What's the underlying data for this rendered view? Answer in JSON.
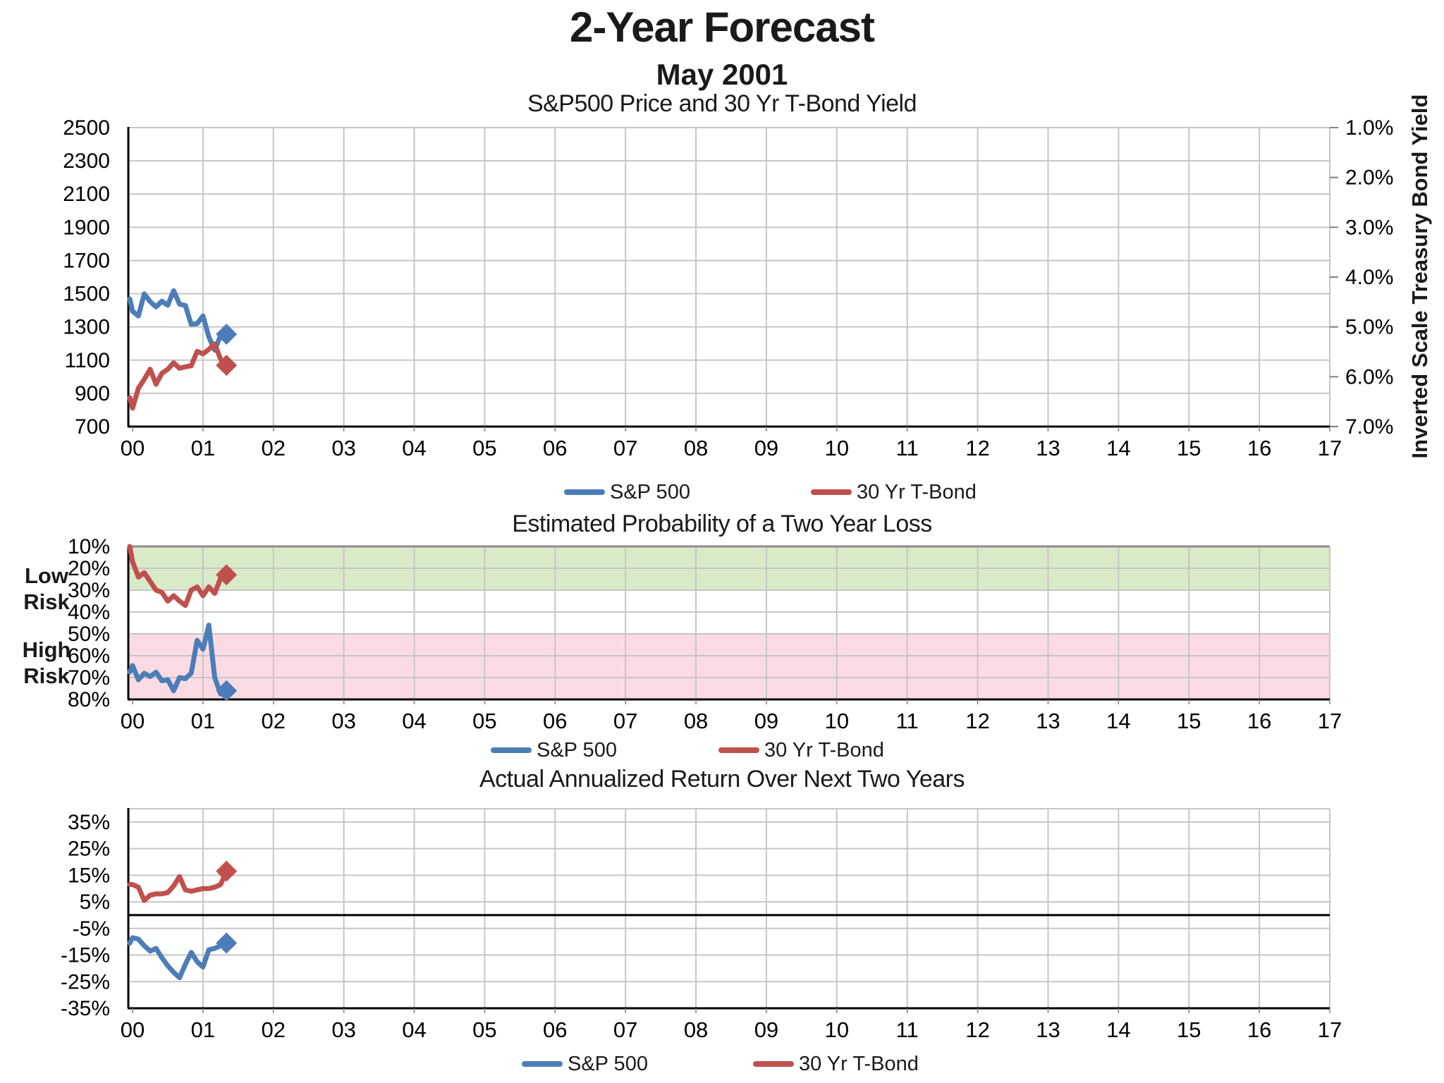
{
  "title": "2-Year Forecast",
  "subtitle": "May 2001",
  "legend": {
    "sp500": "S&P 500",
    "tbond": "30 Yr T-Bond"
  },
  "colors": {
    "sp500": "#4C7DB8",
    "tbond": "#C0504D",
    "grid": "#C6C6C6",
    "axis": "#000000",
    "green_band": "#D9EAC8",
    "pink_band": "#FBDBE3"
  },
  "chart_data": [
    {
      "type": "line",
      "title": "S&P500 Price and 30 Yr T-Bond Yield",
      "x_ticks": [
        "00",
        "01",
        "02",
        "03",
        "04",
        "05",
        "06",
        "07",
        "08",
        "09",
        "10",
        "11",
        "12",
        "13",
        "14",
        "15",
        "16",
        "17"
      ],
      "x_start": "1999-12",
      "x_interval": "monthly",
      "left_axis": {
        "min": 700,
        "max": 2500,
        "inverted": false,
        "tick_values": [
          2500,
          2300,
          2100,
          1900,
          1700,
          1500,
          1300,
          1100,
          900,
          700
        ],
        "ticks": [
          "2500",
          "2300",
          "2100",
          "1900",
          "1700",
          "1500",
          "1300",
          "1100",
          "900",
          "700"
        ]
      },
      "right_axis": {
        "label": "Inverted Scale Treasury Bond Yield",
        "min": 1.0,
        "max": 7.0,
        "inverted": true,
        "tick_values": [
          1,
          2,
          3,
          4,
          5,
          6,
          7
        ],
        "ticks": [
          "1.0%",
          "2.0%",
          "3.0%",
          "4.0%",
          "5.0%",
          "6.0%",
          "7.0%"
        ]
      },
      "series": [
        {
          "name": "S&P 500",
          "axis": "left",
          "marker_on_last": true,
          "values": [
            1469,
            1394,
            1366,
            1499,
            1452,
            1421,
            1455,
            1431,
            1518,
            1437,
            1429,
            1315,
            1320,
            1366,
            1240,
            1160,
            1249,
            1256
          ]
        },
        {
          "name": "30 Yr T-Bond",
          "axis": "right",
          "marker_on_last": true,
          "values": [
            6.42,
            6.63,
            6.23,
            6.05,
            5.85,
            6.15,
            5.93,
            5.85,
            5.72,
            5.83,
            5.8,
            5.78,
            5.49,
            5.54,
            5.45,
            5.34,
            5.65,
            5.77
          ]
        }
      ]
    },
    {
      "type": "line",
      "title": "Estimated Probability of a Two Year Loss",
      "x_ticks": [
        "00",
        "01",
        "02",
        "03",
        "04",
        "05",
        "06",
        "07",
        "08",
        "09",
        "10",
        "11",
        "12",
        "13",
        "14",
        "15",
        "16",
        "17"
      ],
      "x_start": "1999-12",
      "x_interval": "monthly",
      "left_axis": {
        "min": 10,
        "max": 80,
        "inverted": true,
        "tick_values": [
          10,
          20,
          30,
          40,
          50,
          60,
          70,
          80
        ],
        "ticks": [
          "10%",
          "20%",
          "30%",
          "40%",
          "50%",
          "60%",
          "70%",
          "80%"
        ]
      },
      "bands": [
        {
          "label": "Low Risk",
          "from": 10,
          "to": 30,
          "color": "green_band"
        },
        {
          "label": "High Risk",
          "from": 50,
          "to": 80,
          "color": "pink_band"
        }
      ],
      "series": [
        {
          "name": "S&P 500",
          "axis": "left",
          "marker_on_last": true,
          "values": [
            67.5,
            64.5,
            71,
            68,
            69.5,
            67.5,
            71.5,
            71,
            76,
            70,
            70.5,
            68,
            53,
            57,
            46,
            70,
            77.5,
            76
          ]
        },
        {
          "name": "30 Yr T-Bond",
          "axis": "left",
          "marker_on_last": true,
          "values": [
            10,
            17,
            24,
            22,
            26,
            30,
            31,
            35,
            32.5,
            35,
            37,
            30,
            28.5,
            32.5,
            28.5,
            31.5,
            24.5,
            23
          ]
        }
      ]
    },
    {
      "type": "line",
      "title": "Actual Annualized Return Over Next Two Years",
      "x_ticks": [
        "00",
        "01",
        "02",
        "03",
        "04",
        "05",
        "06",
        "07",
        "08",
        "09",
        "10",
        "11",
        "12",
        "13",
        "14",
        "15",
        "16",
        "17"
      ],
      "x_start": "1999-12",
      "x_interval": "monthly",
      "zero_line": true,
      "left_axis": {
        "min": -35,
        "max": 40,
        "inverted": false,
        "tick_values": [
          35,
          25,
          15,
          5,
          -5,
          -15,
          -25,
          -35
        ],
        "ticks": [
          "35%",
          "25%",
          "15%",
          "5%",
          "-5%",
          "-15%",
          "-25%",
          "-35%"
        ]
      },
      "series": [
        {
          "name": "S&P 500",
          "axis": "left",
          "marker_on_last": true,
          "values": [
            -10.5,
            -8.5,
            -9,
            -11.5,
            -13.5,
            -12.5,
            -16,
            -19,
            -21.5,
            -23.5,
            -18.5,
            -14,
            -17.5,
            -19.5,
            -13,
            -12.5,
            -11.5,
            -10.5
          ]
        },
        {
          "name": "30 Yr T-Bond",
          "axis": "left",
          "marker_on_last": true,
          "values": [
            11.5,
            11.5,
            10.5,
            5.5,
            7.5,
            8,
            8,
            8.5,
            11,
            14.5,
            9.5,
            9,
            9.5,
            10,
            10,
            10.5,
            11.5,
            16.5
          ]
        }
      ]
    }
  ]
}
